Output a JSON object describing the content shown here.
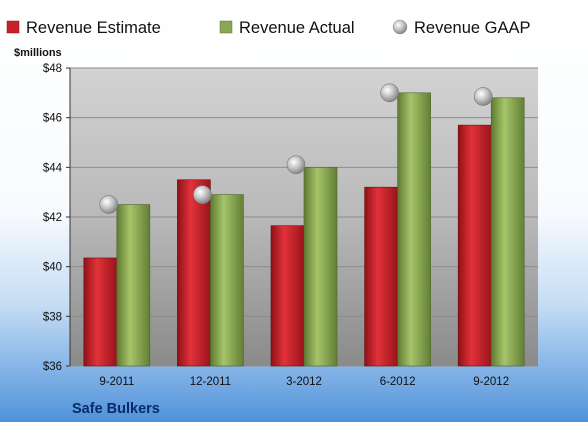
{
  "chart_data": {
    "type": "bar",
    "title": "",
    "company": "Safe Bulkers",
    "ylabel": "$millions",
    "ylim": [
      36,
      48
    ],
    "ytick_step": 2,
    "ytick_format": "$",
    "grid": true,
    "legend_position": "top",
    "categories": [
      "9-2011",
      "12-2011",
      "3-2012",
      "6-2012",
      "9-2012"
    ],
    "series": [
      {
        "name": "Revenue Estimate",
        "kind": "bar",
        "color": "#c8202a",
        "values": [
          40.35,
          43.5,
          41.65,
          43.2,
          45.7
        ]
      },
      {
        "name": "Revenue Actual",
        "kind": "bar",
        "color": "#8aa851",
        "values": [
          42.5,
          42.9,
          44.0,
          47.0,
          46.8
        ]
      },
      {
        "name": "Revenue GAAP",
        "kind": "marker",
        "color": "#b5b5b5",
        "values": [
          42.5,
          42.9,
          44.1,
          47.0,
          46.85
        ]
      }
    ]
  }
}
